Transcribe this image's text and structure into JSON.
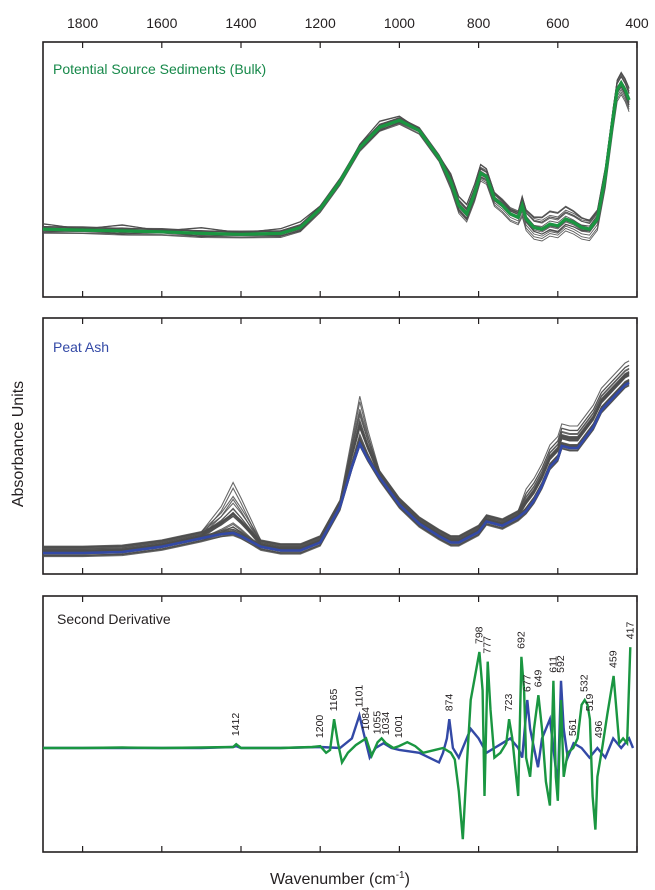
{
  "chart_data": {
    "type": "line",
    "x_axis": {
      "label": "Wavenumber (cm",
      "label_superscript": "-1",
      "label_suffix": ")",
      "range": [
        1900,
        400
      ],
      "reversed": true,
      "ticks": [
        1800,
        1600,
        1400,
        1200,
        1000,
        800,
        600,
        400
      ],
      "tick_labels": [
        "1800",
        "1600",
        "1400",
        "1200",
        "1000",
        "800",
        "600",
        "400"
      ]
    },
    "y_axis": {
      "label": "Absorbance Units",
      "ticks_shown": false
    },
    "colors": {
      "sediment": "#1a9641",
      "peat": "#3349a6",
      "spectra": "#4d4d4d",
      "frame": "#231f20"
    },
    "panels": [
      {
        "title": "Potential Source Sediments (Bulk)",
        "title_color": "#17894a",
        "gray_spectra_count": 20,
        "mean_series": {
          "color": "#1a9641",
          "points": [
            [
              1900,
              0.24
            ],
            [
              1800,
              0.235
            ],
            [
              1700,
              0.23
            ],
            [
              1600,
              0.225
            ],
            [
              1500,
              0.215
            ],
            [
              1400,
              0.21
            ],
            [
              1300,
              0.215
            ],
            [
              1250,
              0.25
            ],
            [
              1200,
              0.36
            ],
            [
              1150,
              0.52
            ],
            [
              1100,
              0.72
            ],
            [
              1050,
              0.84
            ],
            [
              1000,
              0.88
            ],
            [
              950,
              0.82
            ],
            [
              900,
              0.66
            ],
            [
              870,
              0.52
            ],
            [
              850,
              0.38
            ],
            [
              830,
              0.33
            ],
            [
              810,
              0.45
            ],
            [
              795,
              0.57
            ],
            [
              780,
              0.55
            ],
            [
              760,
              0.42
            ],
            [
              740,
              0.38
            ],
            [
              720,
              0.33
            ],
            [
              700,
              0.31
            ],
            [
              690,
              0.38
            ],
            [
              680,
              0.3
            ],
            [
              660,
              0.25
            ],
            [
              640,
              0.24
            ],
            [
              620,
              0.27
            ],
            [
              600,
              0.26
            ],
            [
              580,
              0.3
            ],
            [
              560,
              0.28
            ],
            [
              540,
              0.25
            ],
            [
              520,
              0.24
            ],
            [
              500,
              0.3
            ],
            [
              480,
              0.55
            ],
            [
              460,
              0.9
            ],
            [
              450,
              1.06
            ],
            [
              440,
              1.1
            ],
            [
              430,
              1.06
            ],
            [
              420,
              1.0
            ]
          ]
        }
      },
      {
        "title": "Peat Ash",
        "title_color": "#3349a6",
        "gray_spectra_count": 30,
        "mean_series": {
          "color": "#3349a6",
          "points": [
            [
              1900,
              0.0
            ],
            [
              1800,
              0.0
            ],
            [
              1700,
              0.005
            ],
            [
              1600,
              0.03
            ],
            [
              1550,
              0.05
            ],
            [
              1500,
              0.07
            ],
            [
              1450,
              0.09
            ],
            [
              1420,
              0.095
            ],
            [
              1400,
              0.08
            ],
            [
              1350,
              0.03
            ],
            [
              1300,
              0.012
            ],
            [
              1250,
              0.012
            ],
            [
              1200,
              0.05
            ],
            [
              1150,
              0.22
            ],
            [
              1120,
              0.41
            ],
            [
              1100,
              0.52
            ],
            [
              1080,
              0.45
            ],
            [
              1050,
              0.36
            ],
            [
              1000,
              0.23
            ],
            [
              950,
              0.14
            ],
            [
              900,
              0.08
            ],
            [
              870,
              0.05
            ],
            [
              850,
              0.05
            ],
            [
              830,
              0.07
            ],
            [
              800,
              0.1
            ],
            [
              780,
              0.15
            ],
            [
              760,
              0.14
            ],
            [
              740,
              0.13
            ],
            [
              720,
              0.15
            ],
            [
              700,
              0.17
            ],
            [
              680,
              0.2
            ],
            [
              660,
              0.25
            ],
            [
              640,
              0.32
            ],
            [
              620,
              0.41
            ],
            [
              600,
              0.45
            ],
            [
              590,
              0.51
            ],
            [
              570,
              0.5
            ],
            [
              550,
              0.5
            ],
            [
              530,
              0.55
            ],
            [
              510,
              0.6
            ],
            [
              490,
              0.68
            ],
            [
              470,
              0.72
            ],
            [
              450,
              0.76
            ],
            [
              430,
              0.8
            ],
            [
              420,
              0.81
            ]
          ]
        }
      },
      {
        "title": "Second Derivative",
        "title_color": "#231f20",
        "series": [
          {
            "name_color": "#1a9641",
            "color": "#1a9641",
            "points": [
              [
                1900,
                0.0
              ],
              [
                1800,
                0.0
              ],
              [
                1700,
                0.005
              ],
              [
                1600,
                0.0
              ],
              [
                1500,
                0.005
              ],
              [
                1420,
                0.01
              ],
              [
                1412,
                0.04
              ],
              [
                1400,
                0.0
              ],
              [
                1300,
                0.0
              ],
              [
                1220,
                0.01
              ],
              [
                1200,
                0.02
              ],
              [
                1185,
                -0.05
              ],
              [
                1175,
                -0.02
              ],
              [
                1165,
                0.3
              ],
              [
                1155,
                0.05
              ],
              [
                1145,
                -0.15
              ],
              [
                1130,
                -0.05
              ],
              [
                1110,
                0.03
              ],
              [
                1084,
                0.1
              ],
              [
                1070,
                -0.08
              ],
              [
                1055,
                0.06
              ],
              [
                1045,
                0.1
              ],
              [
                1034,
                0.05
              ],
              [
                1015,
                0.0
              ],
              [
                1001,
                0.02
              ],
              [
                980,
                0.06
              ],
              [
                960,
                0.02
              ],
              [
                940,
                -0.05
              ],
              [
                910,
                -0.02
              ],
              [
                890,
                0.0
              ],
              [
                870,
                -0.05
              ],
              [
                860,
                -0.12
              ],
              [
                850,
                -0.45
              ],
              [
                840,
                -0.95
              ],
              [
                830,
                -0.2
              ],
              [
                820,
                0.5
              ],
              [
                798,
                1.0
              ],
              [
                790,
                0.6
              ],
              [
                785,
                -0.5
              ],
              [
                777,
                0.9
              ],
              [
                770,
                0.4
              ],
              [
                760,
                -0.1
              ],
              [
                745,
                -0.05
              ],
              [
                730,
                0.05
              ],
              [
                723,
                0.3
              ],
              [
                715,
                0.1
              ],
              [
                705,
                -0.3
              ],
              [
                700,
                -0.5
              ],
              [
                692,
                0.95
              ],
              [
                685,
                0.6
              ],
              [
                680,
                -0.1
              ],
              [
                670,
                -0.3
              ],
              [
                660,
                0.2
              ],
              [
                649,
                0.55
              ],
              [
                640,
                0.2
              ],
              [
                630,
                -0.35
              ],
              [
                620,
                -0.6
              ],
              [
                611,
                0.7
              ],
              [
                605,
                -0.3
              ],
              [
                600,
                -0.55
              ],
              [
                592,
                0.5
              ],
              [
                585,
                -0.3
              ],
              [
                575,
                -0.05
              ],
              [
                561,
                0.0
              ],
              [
                550,
                0.1
              ],
              [
                540,
                0.45
              ],
              [
                532,
                0.5
              ],
              [
                525,
                0.45
              ],
              [
                519,
                0.3
              ],
              [
                512,
                -0.5
              ],
              [
                505,
                -0.85
              ],
              [
                500,
                -0.3
              ],
              [
                496,
                -0.2
              ],
              [
                488,
                0.0
              ],
              [
                475,
                0.35
              ],
              [
                459,
                0.75
              ],
              [
                445,
                0.05
              ],
              [
                435,
                0.1
              ],
              [
                425,
                0.05
              ],
              [
                417,
                1.05
              ]
            ]
          },
          {
            "name_color": "#3349a6",
            "color": "#3349a6",
            "points": [
              [
                1900,
                0.0
              ],
              [
                1800,
                0.0
              ],
              [
                1700,
                0.0
              ],
              [
                1600,
                0.0
              ],
              [
                1500,
                0.0
              ],
              [
                1420,
                0.01
              ],
              [
                1412,
                0.02
              ],
              [
                1400,
                0.0
              ],
              [
                1300,
                0.0
              ],
              [
                1200,
                0.01
              ],
              [
                1150,
                0.0
              ],
              [
                1120,
                0.1
              ],
              [
                1101,
                0.34
              ],
              [
                1090,
                0.15
              ],
              [
                1075,
                -0.1
              ],
              [
                1060,
                0.0
              ],
              [
                1040,
                0.05
              ],
              [
                1020,
                0.0
              ],
              [
                1000,
                -0.02
              ],
              [
                950,
                -0.05
              ],
              [
                900,
                -0.15
              ],
              [
                890,
                -0.05
              ],
              [
                880,
                0.1
              ],
              [
                874,
                0.3
              ],
              [
                865,
                0.0
              ],
              [
                850,
                -0.1
              ],
              [
                830,
                0.1
              ],
              [
                820,
                0.2
              ],
              [
                800,
                0.1
              ],
              [
                780,
                -0.05
              ],
              [
                760,
                0.0
              ],
              [
                740,
                0.05
              ],
              [
                720,
                0.1
              ],
              [
                700,
                0.0
              ],
              [
                690,
                -0.1
              ],
              [
                677,
                0.5
              ],
              [
                670,
                0.2
              ],
              [
                660,
                0.0
              ],
              [
                650,
                -0.2
              ],
              [
                640,
                0.1
              ],
              [
                620,
                0.3
              ],
              [
                611,
                0.0
              ],
              [
                600,
                -0.4
              ],
              [
                592,
                0.7
              ],
              [
                585,
                0.2
              ],
              [
                575,
                -0.1
              ],
              [
                560,
                0.05
              ],
              [
                540,
                0.0
              ],
              [
                520,
                -0.1
              ],
              [
                500,
                0.0
              ],
              [
                480,
                -0.1
              ],
              [
                460,
                0.1
              ],
              [
                440,
                0.0
              ],
              [
                420,
                0.1
              ],
              [
                410,
                0.0
              ]
            ]
          }
        ],
        "peak_labels": [
          {
            "wavenumber": 1412,
            "label": "1412"
          },
          {
            "wavenumber": 1200,
            "label": "1200"
          },
          {
            "wavenumber": 1165,
            "label": "1165"
          },
          {
            "wavenumber": 1101,
            "label": "1101"
          },
          {
            "wavenumber": 1084,
            "label": "1084"
          },
          {
            "wavenumber": 1055,
            "label": "1055"
          },
          {
            "wavenumber": 1034,
            "label": "1034"
          },
          {
            "wavenumber": 1001,
            "label": "1001"
          },
          {
            "wavenumber": 874,
            "label": "874"
          },
          {
            "wavenumber": 798,
            "label": "798"
          },
          {
            "wavenumber": 777,
            "label": "777"
          },
          {
            "wavenumber": 723,
            "label": "723"
          },
          {
            "wavenumber": 692,
            "label": "692"
          },
          {
            "wavenumber": 677,
            "label": "677"
          },
          {
            "wavenumber": 649,
            "label": "649"
          },
          {
            "wavenumber": 611,
            "label": "611"
          },
          {
            "wavenumber": 592,
            "label": "592"
          },
          {
            "wavenumber": 561,
            "label": "561"
          },
          {
            "wavenumber": 532,
            "label": "532"
          },
          {
            "wavenumber": 519,
            "label": "519"
          },
          {
            "wavenumber": 496,
            "label": "496"
          },
          {
            "wavenumber": 459,
            "label": "459"
          },
          {
            "wavenumber": 417,
            "label": "417"
          }
        ]
      }
    ]
  }
}
